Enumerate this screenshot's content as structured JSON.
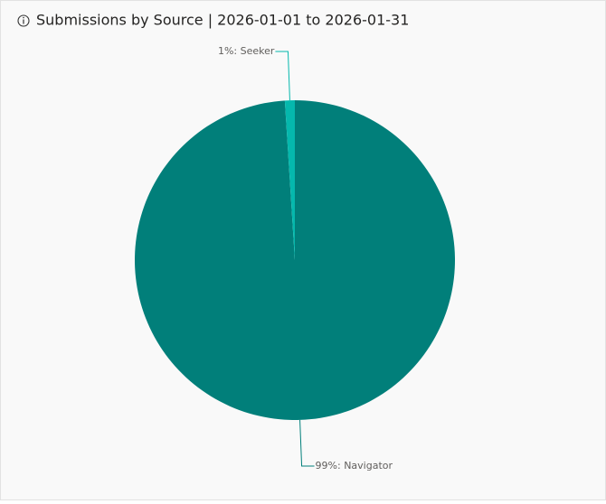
{
  "chart_data": {
    "type": "pie",
    "title": "Submissions by Source | 2026-01-01 to 2026-01-31",
    "values": [
      99,
      1
    ],
    "value_labels": [
      "99%: Navigator",
      "1%: Seeker"
    ],
    "colors": [
      "#017f7a",
      "#05b8ad"
    ]
  }
}
